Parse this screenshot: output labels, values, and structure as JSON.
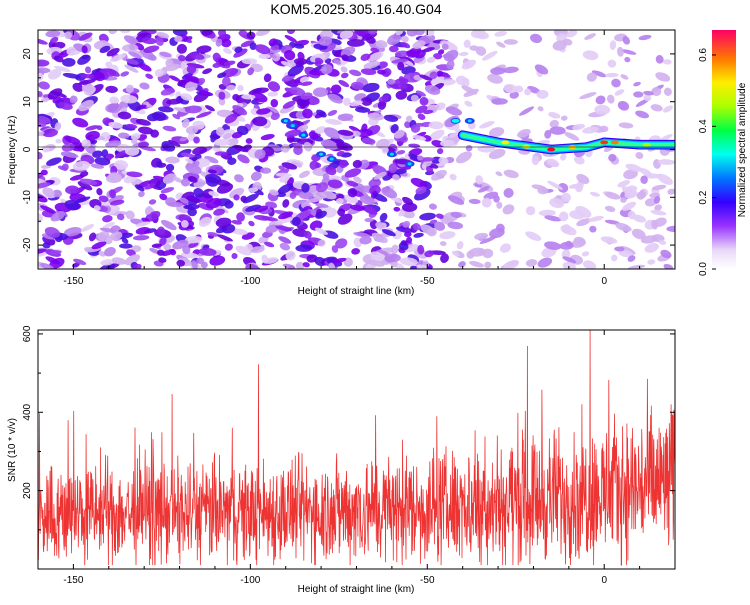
{
  "title": "KOM5.2025.305.16.40.G04",
  "chart_data": [
    {
      "type": "heatmap",
      "title": "KOM5.2025.305.16.40.G04",
      "xlabel": "Height of straight line (km)",
      "ylabel": "Frequency (Hz)",
      "xlim": [
        -160,
        20
      ],
      "ylim": [
        -25,
        25
      ],
      "xticks": [
        -150,
        -100,
        -50,
        0
      ],
      "yticks": [
        -20,
        -10,
        0,
        10,
        20
      ],
      "xtick_labels": [
        "-150",
        "-100",
        "-50",
        "0"
      ],
      "ytick_labels": [
        "-20",
        "-10",
        "0",
        "10",
        "20"
      ],
      "colorbar": {
        "label": "Normalized spectral amplitude",
        "range": [
          0,
          0.67
        ],
        "ticks": [
          0.0,
          0.2,
          0.4,
          0.6
        ],
        "tick_labels": [
          "0.0",
          "0.2",
          "0.4",
          "0.6"
        ]
      },
      "signal_track": {
        "description": "strong narrow band near 0 Hz from about -40 km to 20 km",
        "points": [
          {
            "x": -40,
            "y": 3,
            "amp": 0.35
          },
          {
            "x": -30,
            "y": 1.5,
            "amp": 0.45
          },
          {
            "x": -20,
            "y": 0.5,
            "amp": 0.55
          },
          {
            "x": -15,
            "y": 0,
            "amp": 0.65
          },
          {
            "x": -5,
            "y": 0.5,
            "amp": 0.5
          },
          {
            "x": 0,
            "y": 1.5,
            "amp": 0.6
          },
          {
            "x": 10,
            "y": 1,
            "amp": 0.4
          },
          {
            "x": 20,
            "y": 1,
            "amp": 0.35
          }
        ]
      }
    },
    {
      "type": "line",
      "xlabel": "Height of straight line (km)",
      "ylabel": "SNR (10 * v/v)",
      "xlim": [
        -160,
        20
      ],
      "ylim": [
        0,
        610
      ],
      "xticks": [
        -150,
        -100,
        -50,
        0
      ],
      "yticks": [
        200,
        400,
        600
      ],
      "xtick_labels": [
        "-150",
        "-100",
        "-50",
        "0"
      ],
      "ytick_labels": [
        "200",
        "400",
        "600"
      ],
      "series": [
        {
          "name": "SNR",
          "color": "#ee3333",
          "trend": {
            "x": [
              -160,
              -100,
              -50,
              0,
              20
            ],
            "mean": [
              140,
              145,
              155,
              195,
              225
            ]
          },
          "peak_x": -4,
          "peak_value": 610
        }
      ]
    }
  ]
}
